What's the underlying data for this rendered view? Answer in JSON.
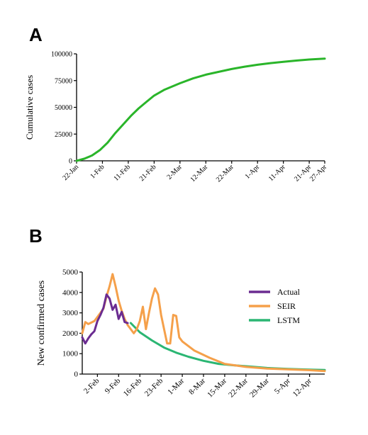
{
  "panels": [
    {
      "label": "A"
    },
    {
      "label": "B"
    }
  ],
  "chart_data": [
    {
      "type": "line",
      "title": "",
      "xlabel": "",
      "ylabel": "Cumulative cases",
      "ylim": [
        0,
        100000
      ],
      "xlim": [
        "2020-01-22",
        "2020-04-27"
      ],
      "yticks": [
        0,
        25000,
        50000,
        75000,
        100000
      ],
      "ytick_labels": [
        "0",
        "25000",
        "50000",
        "75000",
        "100000"
      ],
      "xticks": [
        "2020-01-22",
        "2020-02-01",
        "2020-02-11",
        "2020-02-21",
        "2020-03-02",
        "2020-03-12",
        "2020-03-22",
        "2020-04-01",
        "2020-04-11",
        "2020-04-21",
        "2020-04-27"
      ],
      "xtick_labels": [
        "22-Jan",
        "1-Feb",
        "11-Feb",
        "21-Feb",
        "2-Mar",
        "12-Mar",
        "22-Mar",
        "1-Apr",
        "11-Apr",
        "21-Apr",
        "27-Apr"
      ],
      "grid": false,
      "series": [
        {
          "color": "#2ab52a",
          "x": [
            "2020-01-22",
            "2020-01-25",
            "2020-01-28",
            "2020-01-31",
            "2020-02-03",
            "2020-02-06",
            "2020-02-09",
            "2020-02-12",
            "2020-02-15",
            "2020-02-18",
            "2020-02-21",
            "2020-02-25",
            "2020-03-02",
            "2020-03-07",
            "2020-03-12",
            "2020-03-17",
            "2020-03-22",
            "2020-03-27",
            "2020-04-01",
            "2020-04-06",
            "2020-04-11",
            "2020-04-16",
            "2020-04-21",
            "2020-04-27"
          ],
          "values": [
            0,
            2000,
            5000,
            10000,
            17000,
            26000,
            34000,
            42000,
            49000,
            55000,
            61000,
            66500,
            72500,
            77000,
            80500,
            83200,
            85800,
            88000,
            89800,
            91300,
            92600,
            93700,
            94700,
            95500
          ]
        }
      ]
    },
    {
      "type": "line",
      "title": "",
      "xlabel": "",
      "ylabel": "New confirmed cases",
      "ylim": [
        0,
        5000
      ],
      "xlim": [
        "2020-01-28",
        "2020-04-17"
      ],
      "yticks": [
        0,
        1000,
        2000,
        3000,
        4000,
        5000
      ],
      "ytick_labels": [
        "0",
        "1000",
        "2000",
        "3000",
        "4000",
        "5000"
      ],
      "xticks": [
        "2020-02-02",
        "2020-02-09",
        "2020-02-16",
        "2020-02-23",
        "2020-03-01",
        "2020-03-08",
        "2020-03-15",
        "2020-03-22",
        "2020-03-29",
        "2020-04-05",
        "2020-04-12"
      ],
      "xtick_labels": [
        "2-Feb",
        "9-Feb",
        "16-Feb",
        "23-Feb",
        "1-Mar",
        "8-Mar",
        "15-Mar",
        "22-Mar",
        "29-Mar",
        "5-Apr",
        "12-Apr"
      ],
      "legend_position": "right",
      "grid": false,
      "series": [
        {
          "name": "LSTM",
          "color": "#2bb673",
          "x": [
            "2020-02-13",
            "2020-02-16",
            "2020-02-20",
            "2020-02-24",
            "2020-02-28",
            "2020-03-03",
            "2020-03-08",
            "2020-03-13",
            "2020-03-18",
            "2020-03-23",
            "2020-03-29",
            "2020-04-05",
            "2020-04-12",
            "2020-04-17"
          ],
          "values": [
            2500,
            2050,
            1650,
            1300,
            1050,
            850,
            650,
            500,
            430,
            370,
            300,
            250,
            220,
            200
          ]
        },
        {
          "name": "SEIR",
          "color": "#f5a04a",
          "x": [
            "2020-01-28",
            "2020-01-29",
            "2020-01-30",
            "2020-02-01",
            "2020-02-02",
            "2020-02-04",
            "2020-02-05",
            "2020-02-06",
            "2020-02-07",
            "2020-02-08",
            "2020-02-09",
            "2020-02-10",
            "2020-02-11",
            "2020-02-12",
            "2020-02-13",
            "2020-02-14",
            "2020-02-15",
            "2020-02-16",
            "2020-02-17",
            "2020-02-18",
            "2020-02-19",
            "2020-02-20",
            "2020-02-21",
            "2020-02-22",
            "2020-02-23",
            "2020-02-24",
            "2020-02-25",
            "2020-02-26",
            "2020-02-27",
            "2020-02-28",
            "2020-02-29",
            "2020-03-01",
            "2020-03-05",
            "2020-03-10",
            "2020-03-15",
            "2020-03-22",
            "2020-03-29",
            "2020-04-05",
            "2020-04-12",
            "2020-04-17"
          ],
          "values": [
            2000,
            2550,
            2450,
            2600,
            2800,
            3200,
            3800,
            4300,
            4900,
            4300,
            3600,
            3100,
            2700,
            2400,
            2200,
            2000,
            2200,
            2600,
            3300,
            2200,
            3000,
            3700,
            4200,
            3900,
            2900,
            2200,
            1500,
            1500,
            2900,
            2850,
            1800,
            1600,
            1150,
            800,
            500,
            350,
            270,
            230,
            190,
            150
          ]
        },
        {
          "name": "Actual",
          "color": "#6b2c91",
          "x": [
            "2020-01-28",
            "2020-01-29",
            "2020-01-30",
            "2020-01-31",
            "2020-02-01",
            "2020-02-02",
            "2020-02-03",
            "2020-02-04",
            "2020-02-05",
            "2020-02-06",
            "2020-02-07",
            "2020-02-08",
            "2020-02-09",
            "2020-02-10",
            "2020-02-11",
            "2020-02-12"
          ],
          "values": [
            1800,
            1500,
            1750,
            1950,
            2100,
            2600,
            2900,
            3250,
            3900,
            3700,
            3150,
            3400,
            2700,
            3050,
            2550,
            2500
          ]
        }
      ]
    }
  ]
}
